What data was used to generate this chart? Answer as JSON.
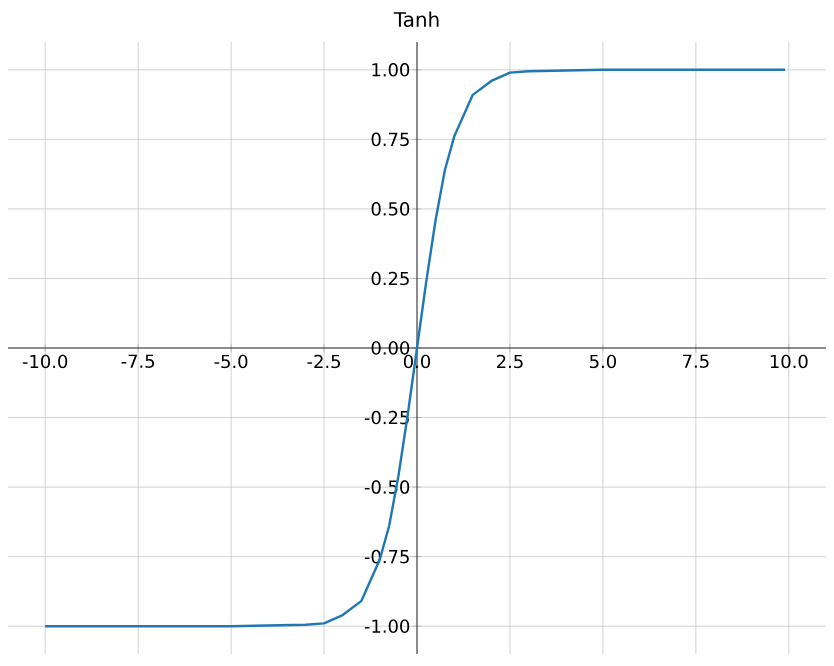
{
  "chart_data": {
    "type": "line",
    "title": "Tanh",
    "x": [
      -10,
      -5,
      -3,
      -2.5,
      -2,
      -1.5,
      -1,
      -0.75,
      -0.5,
      -0.25,
      0,
      0.25,
      0.5,
      0.75,
      1,
      1.5,
      2,
      2.5,
      3,
      5,
      9.9
    ],
    "series": [
      {
        "color": "#1f77b4",
        "values": [
          -1,
          -1,
          -0.995,
          -0.99,
          -0.96,
          -0.91,
          -0.76,
          -0.64,
          -0.46,
          -0.24,
          0,
          0.24,
          0.46,
          0.64,
          0.76,
          0.91,
          0.96,
          0.99,
          0.995,
          1,
          1
        ]
      }
    ],
    "xlim": [
      -11,
      11
    ],
    "ylim": [
      -1.1,
      1.1
    ],
    "xticks": [
      {
        "value": -10,
        "label": "-10.0"
      },
      {
        "value": -7.5,
        "label": "-7.5"
      },
      {
        "value": -5,
        "label": "-5.0"
      },
      {
        "value": -2.5,
        "label": "-2.5"
      },
      {
        "value": 0,
        "label": "0.0"
      },
      {
        "value": 2.5,
        "label": "2.5"
      },
      {
        "value": 5,
        "label": "5.0"
      },
      {
        "value": 7.5,
        "label": "7.5"
      },
      {
        "value": 10,
        "label": "10.0"
      }
    ],
    "yticks": [
      {
        "value": -1,
        "label": "-1.00"
      },
      {
        "value": -0.75,
        "label": "-0.75"
      },
      {
        "value": -0.5,
        "label": "-0.50"
      },
      {
        "value": -0.25,
        "label": "-0.25"
      },
      {
        "value": 0,
        "label": "0.00"
      },
      {
        "value": 0.25,
        "label": "0.25"
      },
      {
        "value": 0.5,
        "label": "0.50"
      },
      {
        "value": 0.75,
        "label": "0.75"
      },
      {
        "value": 1,
        "label": "1.00"
      }
    ],
    "grid": true,
    "line_style": "solid",
    "marker": "none"
  }
}
